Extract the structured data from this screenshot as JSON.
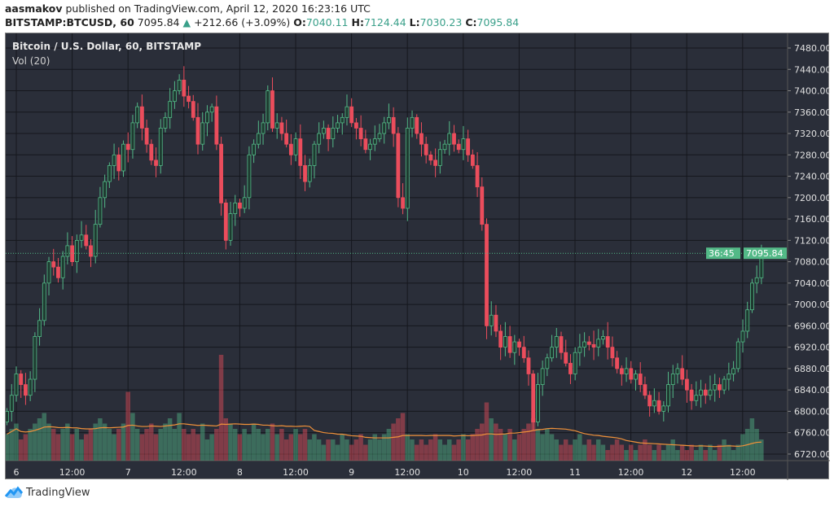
{
  "header": {
    "author": "aasmakov",
    "published": "published on TradingView.com, April 12, 2020 16:23:16 UTC",
    "symbol": "BITSTAMP:BTCUSD, 60",
    "last": "7095.84",
    "change": "+212.66 (+3.09%)",
    "o_label": "O:",
    "o": "7040.11",
    "h_label": "H:",
    "h": "7124.44",
    "l_label": "L:",
    "l": "7030.23",
    "c_label": "C:",
    "c": "7095.84"
  },
  "footer": {
    "brand": "TradingView"
  },
  "colors": {
    "up": "#53b987",
    "down": "#eb4d5c",
    "ma": "#f0913a",
    "background": "#2a2e39"
  },
  "chart_data": {
    "type": "candlestick",
    "title": "Bitcoin / U.S. Dollar, 60, BITSTAMP",
    "indicator": "Vol (20)",
    "ylim": [
      6700,
      7500
    ],
    "y_ticks": [
      "7480.00",
      "7440.00",
      "7400.00",
      "7360.00",
      "7320.00",
      "7280.00",
      "7240.00",
      "7200.00",
      "7160.00",
      "7120.00",
      "7080.00",
      "7040.00",
      "7000.00",
      "6960.00",
      "6920.00",
      "6880.00",
      "6840.00",
      "6800.00",
      "6760.00",
      "6720.00"
    ],
    "x_ticks": [
      "6",
      "12:00",
      "7",
      "12:00",
      "8",
      "12:00",
      "9",
      "12:00",
      "10",
      "12:00",
      "11",
      "12:00",
      "12",
      "12:00"
    ],
    "current_price": "7095.84",
    "countdown": "36:45",
    "grid": true,
    "close": [
      6800,
      6830,
      6870,
      6850,
      6830,
      6860,
      6940,
      6970,
      7040,
      7080,
      7070,
      7050,
      7090,
      7110,
      7080,
      7120,
      7130,
      7110,
      7090,
      7150,
      7200,
      7230,
      7260,
      7280,
      7250,
      7300,
      7290,
      7340,
      7370,
      7330,
      7300,
      7270,
      7260,
      7330,
      7350,
      7380,
      7400,
      7420,
      7390,
      7380,
      7350,
      7300,
      7340,
      7360,
      7370,
      7300,
      7190,
      7120,
      7170,
      7190,
      7180,
      7200,
      7280,
      7300,
      7320,
      7340,
      7400,
      7330,
      7340,
      7320,
      7300,
      7280,
      7310,
      7260,
      7230,
      7260,
      7300,
      7320,
      7330,
      7310,
      7330,
      7340,
      7350,
      7370,
      7340,
      7330,
      7310,
      7290,
      7300,
      7310,
      7320,
      7340,
      7350,
      7320,
      7200,
      7180,
      7330,
      7350,
      7320,
      7300,
      7280,
      7270,
      7260,
      7290,
      7300,
      7320,
      7300,
      7290,
      7310,
      7280,
      7260,
      7220,
      7150,
      6960,
      6980,
      6950,
      6920,
      6940,
      6910,
      6930,
      6920,
      6900,
      6870,
      6780,
      6850,
      6880,
      6900,
      6920,
      6940,
      6910,
      6890,
      6870,
      6910,
      6920,
      6930,
      6925,
      6920,
      6935,
      6940,
      6920,
      6900,
      6880,
      6870,
      6880,
      6860,
      6870,
      6850,
      6830,
      6810,
      6820,
      6800,
      6810,
      6850,
      6870,
      6880,
      6860,
      6840,
      6820,
      6830,
      6840,
      6830,
      6840,
      6850,
      6840,
      6860,
      6870,
      6880,
      6930,
      6950,
      6990,
      7040,
      7050,
      7095.84
    ],
    "volume": [
      25,
      30,
      35,
      20,
      25,
      30,
      35,
      40,
      45,
      35,
      30,
      25,
      30,
      35,
      25,
      30,
      20,
      25,
      30,
      35,
      40,
      35,
      30,
      25,
      30,
      35,
      65,
      45,
      30,
      25,
      30,
      35,
      25,
      30,
      35,
      40,
      30,
      45,
      30,
      25,
      30,
      25,
      35,
      20,
      25,
      30,
      100,
      40,
      35,
      30,
      25,
      30,
      25,
      35,
      30,
      25,
      30,
      35,
      25,
      30,
      20,
      25,
      30,
      25,
      30,
      20,
      25,
      20,
      15,
      20,
      20,
      15,
      25,
      20,
      15,
      20,
      25,
      15,
      20,
      25,
      20,
      25,
      30,
      35,
      40,
      45,
      25,
      20,
      15,
      20,
      15,
      20,
      25,
      20,
      15,
      20,
      15,
      20,
      25,
      20,
      25,
      30,
      35,
      55,
      40,
      35,
      30,
      25,
      30,
      20,
      25,
      30,
      35,
      40,
      30,
      25,
      30,
      25,
      20,
      15,
      20,
      15,
      20,
      25,
      15,
      20,
      15,
      20,
      15,
      10,
      15,
      20,
      15,
      10,
      15,
      10,
      15,
      20,
      15,
      10,
      15,
      10,
      15,
      20,
      10,
      15,
      10,
      15,
      10,
      15,
      10,
      15,
      10,
      15,
      20,
      15,
      10,
      15,
      25,
      30,
      40,
      30,
      20
    ]
  }
}
